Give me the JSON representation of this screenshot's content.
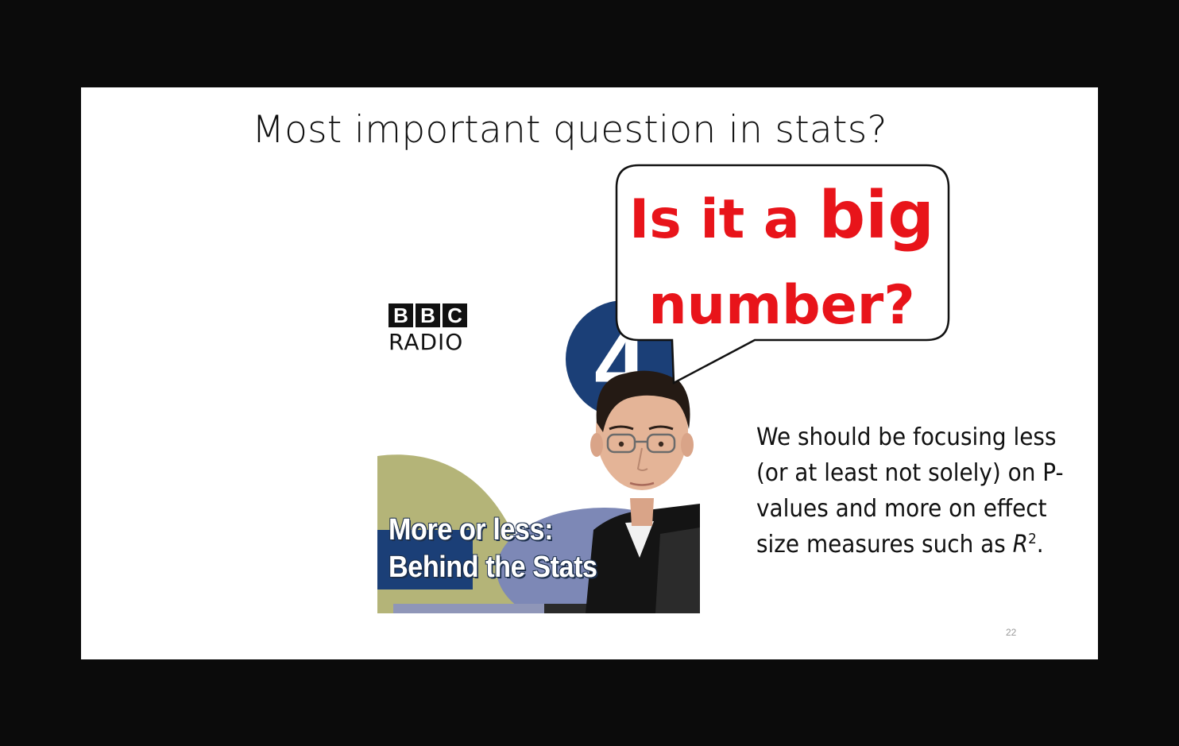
{
  "slide": {
    "title": "Most important question in stats?",
    "bubble": {
      "line1_small": "Is it a",
      "line1_big": "big",
      "line2": "number?"
    },
    "body": {
      "text": "We should be focusing less (or at least not solely) on P-values and more on effect size measures such as",
      "symbol": "R",
      "superscript": "2",
      "end": "."
    },
    "page_number": "22",
    "podcast_art": {
      "logo_letters": [
        "B",
        "B",
        "C"
      ],
      "logo_word": "RADIO",
      "channel_number": "4",
      "show_line1": "More or less:",
      "show_line2": "Behind the Stats"
    }
  },
  "colors": {
    "bubble_text": "#e8141a",
    "radio4_blue": "#1b3f77",
    "olive": "#b4b478",
    "slate_blue": "#7d88b6"
  }
}
